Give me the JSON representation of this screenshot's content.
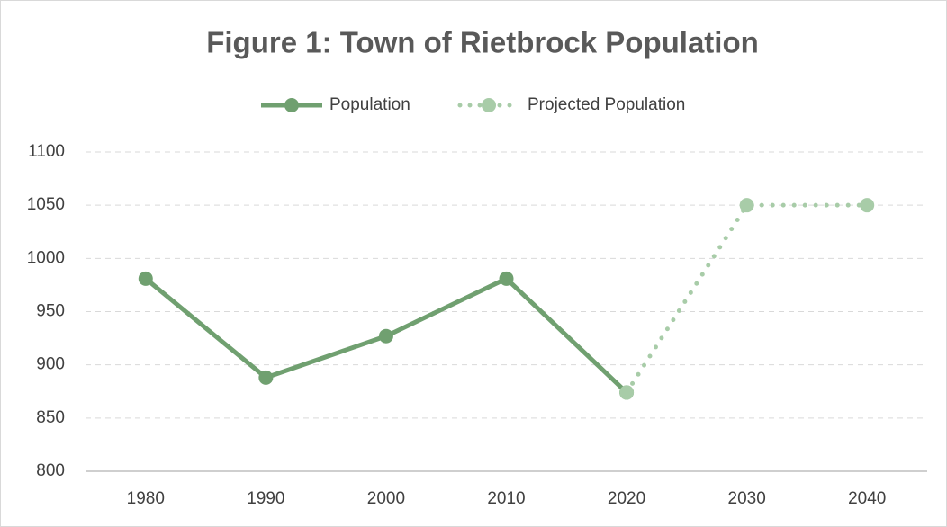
{
  "chart_data": {
    "type": "line",
    "title": "Figure 1:  Town of Rietbrock Population",
    "categories": [
      "1980",
      "1990",
      "2000",
      "2010",
      "2020",
      "2030",
      "2040"
    ],
    "series": [
      {
        "name": "Population",
        "color": "#70a070",
        "style": "solid",
        "values": [
          981,
          888,
          927,
          981,
          874,
          null,
          null
        ]
      },
      {
        "name": "Projected Population",
        "color": "#a8cca8",
        "style": "dotted",
        "values": [
          null,
          null,
          null,
          null,
          874,
          1050,
          1050
        ]
      }
    ],
    "ylim": [
      800,
      1100
    ],
    "yticks": [
      800,
      850,
      900,
      950,
      1000,
      1050,
      1100
    ],
    "grid": true,
    "legend": "top"
  }
}
